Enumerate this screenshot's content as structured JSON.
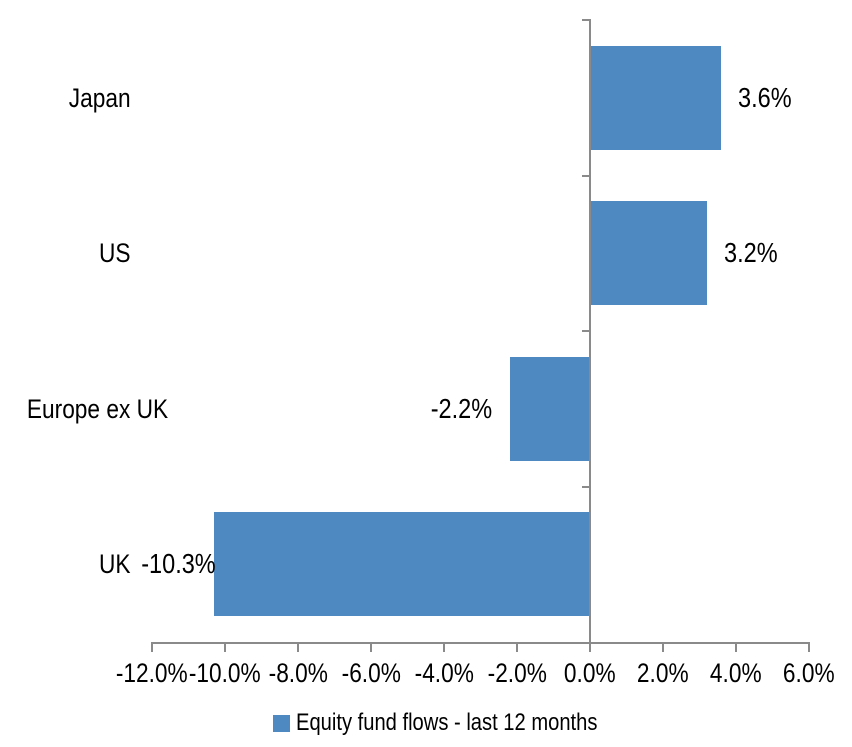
{
  "chart_data": {
    "type": "bar",
    "orientation": "horizontal",
    "title": "",
    "categories": [
      "Japan",
      "US",
      "Europe ex UK",
      "UK"
    ],
    "series": [
      {
        "name": "Equity fund flows - last 12 months",
        "values": [
          3.6,
          3.2,
          -2.2,
          -10.3
        ],
        "data_labels": [
          "3.6%",
          "3.2%",
          "-2.2%",
          "-10.3%"
        ]
      }
    ],
    "xlim": [
      -12,
      6
    ],
    "x_tick_values": [
      -12,
      -10,
      -8,
      -6,
      -4,
      -2,
      0,
      2,
      4,
      6
    ],
    "x_tick_labels": [
      "-12.0%",
      "-10.0%",
      "-8.0%",
      "-6.0%",
      "-4.0%",
      "-2.0%",
      "0.0%",
      "2.0%",
      "4.0%",
      "6.0%"
    ],
    "xlabel": "",
    "ylabel": "",
    "grid": false,
    "legend": {
      "position": "bottom",
      "label": "Equity fund flows - last 12 months"
    },
    "colors": {
      "series": "#4e89c1",
      "axis": "#8a8a8a",
      "text": "#000000",
      "background": "#ffffff"
    }
  }
}
